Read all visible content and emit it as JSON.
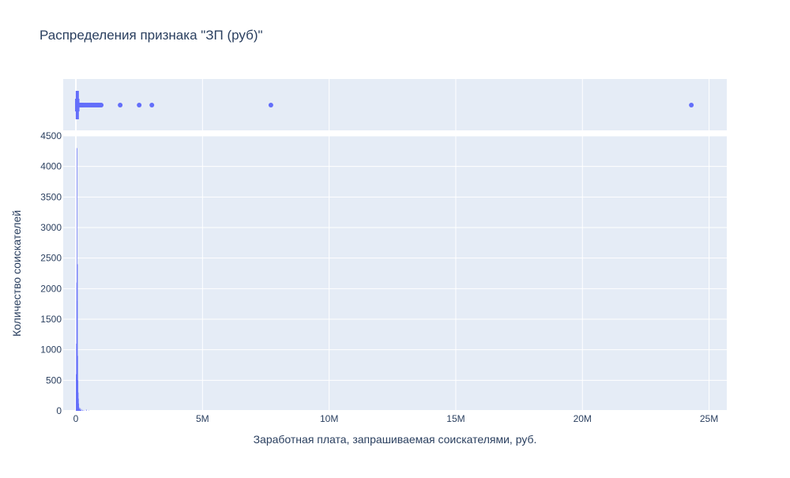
{
  "chart_data": {
    "type": "histogram",
    "title": "Распределения признака \"ЗП (руб)\"",
    "xlabel": "Заработная плата, запрашиваемая соискателями, руб.",
    "ylabel": "Количество соискателей",
    "xlim": [
      -500000,
      25700000
    ],
    "ylim": [
      0,
      4500
    ],
    "x_ticks": [
      {
        "value": 0,
        "label": "0"
      },
      {
        "value": 5000000,
        "label": "5M"
      },
      {
        "value": 10000000,
        "label": "10M"
      },
      {
        "value": 15000000,
        "label": "15M"
      },
      {
        "value": 20000000,
        "label": "20M"
      },
      {
        "value": 25000000,
        "label": "25M"
      }
    ],
    "y_ticks": [
      {
        "value": 0,
        "label": "0"
      },
      {
        "value": 500,
        "label": "500"
      },
      {
        "value": 1000,
        "label": "1000"
      },
      {
        "value": 1500,
        "label": "1500"
      },
      {
        "value": 2000,
        "label": "2000"
      },
      {
        "value": 2500,
        "label": "2500"
      },
      {
        "value": 3000,
        "label": "3000"
      },
      {
        "value": 3500,
        "label": "3500"
      },
      {
        "value": 4000,
        "label": "4000"
      },
      {
        "value": 4500,
        "label": "4500"
      }
    ],
    "grid": true,
    "legend": "none",
    "color": "#636efa",
    "histogram": {
      "bin_width": 10000,
      "bins": [
        {
          "x0": 0,
          "count": 600
        },
        {
          "x0": 10000,
          "count": 1100
        },
        {
          "x0": 20000,
          "count": 2100
        },
        {
          "x0": 30000,
          "count": 4300
        },
        {
          "x0": 40000,
          "count": 1800
        },
        {
          "x0": 50000,
          "count": 2400
        },
        {
          "x0": 60000,
          "count": 900
        },
        {
          "x0": 70000,
          "count": 500
        },
        {
          "x0": 80000,
          "count": 300
        },
        {
          "x0": 90000,
          "count": 200
        },
        {
          "x0": 100000,
          "count": 120
        },
        {
          "x0": 110000,
          "count": 60
        },
        {
          "x0": 120000,
          "count": 40
        },
        {
          "x0": 130000,
          "count": 30
        },
        {
          "x0": 140000,
          "count": 25
        },
        {
          "x0": 150000,
          "count": 45
        },
        {
          "x0": 160000,
          "count": 15
        },
        {
          "x0": 170000,
          "count": 12
        },
        {
          "x0": 180000,
          "count": 10
        },
        {
          "x0": 190000,
          "count": 8
        },
        {
          "x0": 200000,
          "count": 30
        },
        {
          "x0": 250000,
          "count": 15
        },
        {
          "x0": 300000,
          "count": 10
        },
        {
          "x0": 400000,
          "count": 20
        },
        {
          "x0": 500000,
          "count": 5
        }
      ]
    },
    "boxplot": {
      "min": 0,
      "q1": 25000,
      "median": 40000,
      "q3": 60000,
      "upper_fence": 110000,
      "outliers": [
        115000,
        130000,
        150000,
        180000,
        200000,
        230000,
        250000,
        280000,
        300000,
        350000,
        400000,
        450000,
        500000,
        550000,
        600000,
        650000,
        700000,
        750000,
        800000,
        850000,
        900000,
        950000,
        1000000,
        1750000,
        2500000,
        3000000,
        7700000,
        24300000
      ]
    }
  }
}
